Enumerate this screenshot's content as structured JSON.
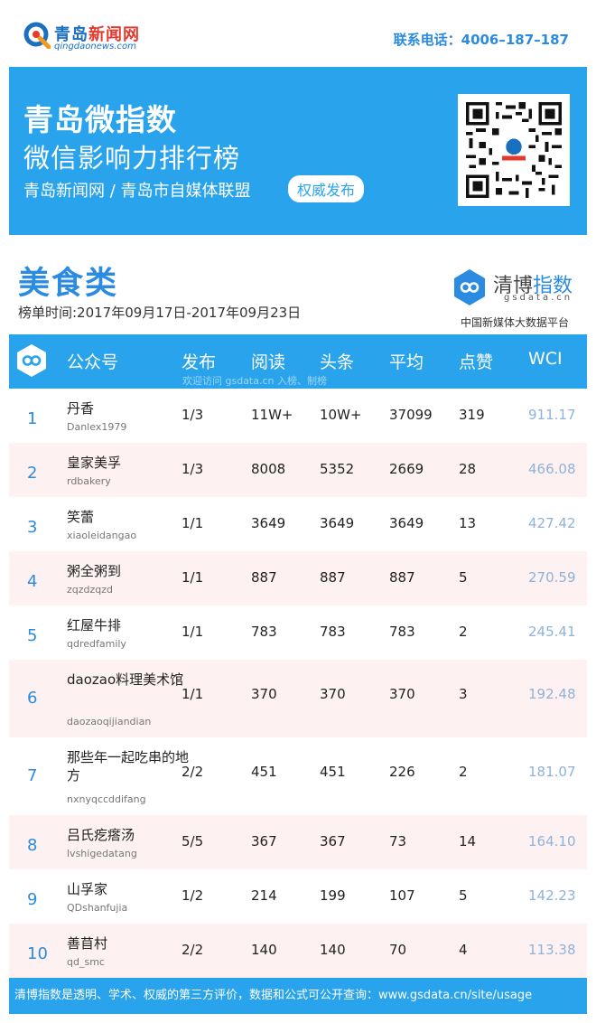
{
  "header": {
    "logo_title_a": "青岛",
    "logo_title_b": "新闻网",
    "logo_domain": "qingdaonews.com",
    "hotline": "联系电话：4006–187–187"
  },
  "banner": {
    "title": "青岛微指数",
    "subtitle": "微信影响力排行榜",
    "org_line": "青岛新闻网 / 青岛市自媒体联盟",
    "pill": "权威发布"
  },
  "category": "美食类",
  "period": "榜单时间:2017年09月17日-2017年09月23日",
  "brand": {
    "name_a": "清博",
    "name_b": "指数",
    "domain": "gsdata.cn",
    "slogan": "中国新媒体大数据平台"
  },
  "table": {
    "headers": [
      "公众号",
      "发布",
      "阅读",
      "头条",
      "平均",
      "点赞",
      "WCI"
    ],
    "watermark": "欢迎访问 gsdata.cn 入榜、制榜",
    "rows": [
      {
        "rank": "1",
        "name": "丹香",
        "account": "Danlex1979",
        "publish": "1/3",
        "read": "11W+",
        "top": "10W+",
        "avg": "37099",
        "likes": "319",
        "wci": "911.17"
      },
      {
        "rank": "2",
        "name": "皇家美孚",
        "account": "rdbakery",
        "publish": "1/3",
        "read": "8008",
        "top": "5352",
        "avg": "2669",
        "likes": "28",
        "wci": "466.08"
      },
      {
        "rank": "3",
        "name": "笑蕾",
        "account": "xiaoleidangao",
        "publish": "1/1",
        "read": "3649",
        "top": "3649",
        "avg": "3649",
        "likes": "13",
        "wci": "427.42"
      },
      {
        "rank": "4",
        "name": "粥全粥到",
        "account": "zqzdzqzd",
        "publish": "1/1",
        "read": "887",
        "top": "887",
        "avg": "887",
        "likes": "5",
        "wci": "270.59"
      },
      {
        "rank": "5",
        "name": "红屋牛排",
        "account": "qdredfamily",
        "publish": "1/1",
        "read": "783",
        "top": "783",
        "avg": "783",
        "likes": "2",
        "wci": "245.41"
      },
      {
        "rank": "6",
        "name": "daozao料理美术馆",
        "account": "daozaoqijiandian",
        "publish": "1/1",
        "read": "370",
        "top": "370",
        "avg": "370",
        "likes": "3",
        "wci": "192.48"
      },
      {
        "rank": "7",
        "name": "那些年一起吃串的地方",
        "account": "nxnyqccddifang",
        "publish": "2/2",
        "read": "451",
        "top": "451",
        "avg": "226",
        "likes": "2",
        "wci": "181.07"
      },
      {
        "rank": "8",
        "name": "吕氏疙瘩汤",
        "account": "lvshigedatang",
        "publish": "5/5",
        "read": "367",
        "top": "367",
        "avg": "73",
        "likes": "14",
        "wci": "164.10"
      },
      {
        "rank": "9",
        "name": "山孚家",
        "account": "QDshanfujia",
        "publish": "1/2",
        "read": "214",
        "top": "199",
        "avg": "107",
        "likes": "5",
        "wci": "142.23"
      },
      {
        "rank": "10",
        "name": "善苜村",
        "account": "qd_smc",
        "publish": "2/2",
        "read": "140",
        "top": "140",
        "avg": "70",
        "likes": "4",
        "wci": "113.38"
      }
    ]
  },
  "footer": "清博指数是透明、学术、权威的第三方评价，数据和公式可公开查询：www.gsdata.cn/site/usage"
}
